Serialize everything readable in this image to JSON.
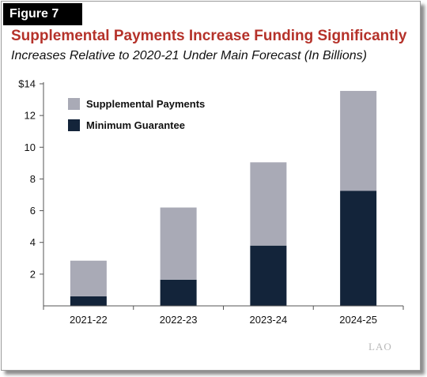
{
  "figure_label": "Figure 7",
  "colors": {
    "title": "#b5322a",
    "supplemental": "#a9aab6",
    "minimum": "#13243a",
    "axis": "#555555",
    "watermark": "#b8b8b8"
  },
  "watermark": "LAO",
  "chart_data": {
    "type": "bar",
    "stacked": true,
    "title": "Supplemental Payments Increase Funding Significantly",
    "subtitle": "Increases Relative to 2020-21 Under Main Forecast (In Billions)",
    "xlabel": "",
    "ylabel": "",
    "categories": [
      "2021-22",
      "2022-23",
      "2023-24",
      "2024-25"
    ],
    "series": [
      {
        "name": "Minimum Guarantee",
        "color": "#13243a",
        "values": [
          0.6,
          1.65,
          3.8,
          7.25
        ]
      },
      {
        "name": "Supplemental Payments",
        "color": "#a9aab6",
        "values": [
          2.25,
          4.55,
          5.25,
          6.3
        ]
      }
    ],
    "ylim": [
      0,
      14
    ],
    "yticks": [
      {
        "value": 2,
        "label": "2"
      },
      {
        "value": 4,
        "label": "4"
      },
      {
        "value": 6,
        "label": "6"
      },
      {
        "value": 8,
        "label": "8"
      },
      {
        "value": 10,
        "label": "10"
      },
      {
        "value": 12,
        "label": "12"
      },
      {
        "value": 14,
        "label": "$14"
      }
    ],
    "grid": false,
    "legend_position": "top-left",
    "legend_order": [
      "Supplemental Payments",
      "Minimum Guarantee"
    ]
  }
}
